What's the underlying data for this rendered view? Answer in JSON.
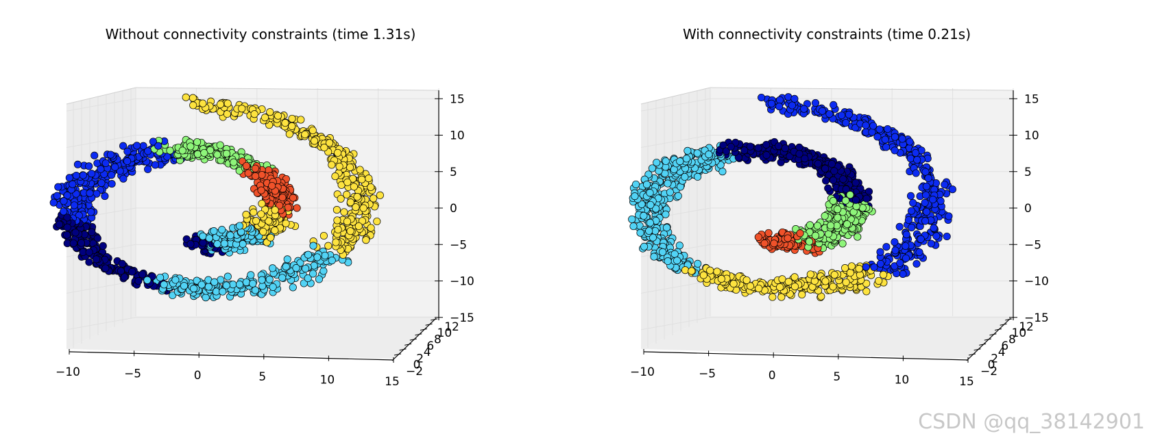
{
  "watermark": "CSDN @qq_38142901",
  "colors": {
    "cluster_0": "#00007f",
    "cluster_1": "#0c2bf2",
    "cluster_2": "#52d3f5",
    "cluster_3": "#8ef57a",
    "cluster_4": "#fde33f",
    "cluster_5": "#f0522a",
    "pane": "#f2f2f2",
    "grid": "#e0e0e0"
  },
  "chart_data": [
    {
      "type": "scatter",
      "projection": "3d",
      "title": "Without connectivity constraints (time 1.31s)",
      "x_ticks": [
        "−10",
        "−5",
        "0",
        "5",
        "10",
        "15"
      ],
      "y_ticks": [
        "−2",
        "0",
        "2",
        "4",
        "6",
        "8",
        "10",
        "12"
      ],
      "z_ticks": [
        "−15",
        "−10",
        "−5",
        "0",
        "5",
        "10",
        "15"
      ],
      "xlim": [
        -10,
        15
      ],
      "zlim": [
        -15,
        15
      ],
      "grid": true,
      "segments": [
        {
          "cluster": 4,
          "t_start": 0.97,
          "t_end": 1.0
        },
        {
          "cluster": 4,
          "t_start": 0.78,
          "t_end": 0.97
        },
        {
          "cluster": 2,
          "t_start": 0.64,
          "t_end": 0.78
        },
        {
          "cluster": 0,
          "t_start": 0.52,
          "t_end": 0.64
        },
        {
          "cluster": 1,
          "t_start": 0.36,
          "t_end": 0.52
        },
        {
          "cluster": 3,
          "t_start": 0.25,
          "t_end": 0.36
        },
        {
          "cluster": 5,
          "t_start": 0.16,
          "t_end": 0.25
        },
        {
          "cluster": 4,
          "t_start": 0.1,
          "t_end": 0.16
        },
        {
          "cluster": 2,
          "t_start": 0.03,
          "t_end": 0.1
        },
        {
          "cluster": 0,
          "t_start": 0.0,
          "t_end": 0.03
        }
      ]
    },
    {
      "type": "scatter",
      "projection": "3d",
      "title": "With connectivity constraints (time 0.21s)",
      "x_ticks": [
        "−10",
        "−5",
        "0",
        "5",
        "10",
        "15"
      ],
      "y_ticks": [
        "−2",
        "0",
        "2",
        "4",
        "6",
        "8",
        "10",
        "12"
      ],
      "z_ticks": [
        "−15",
        "−10",
        "−5",
        "0",
        "5",
        "10",
        "15"
      ],
      "xlim": [
        -10,
        15
      ],
      "zlim": [
        -15,
        15
      ],
      "grid": true,
      "segments": [
        {
          "cluster": 1,
          "t_start": 0.75,
          "t_end": 1.0
        },
        {
          "cluster": 4,
          "t_start": 0.6,
          "t_end": 0.75
        },
        {
          "cluster": 2,
          "t_start": 0.38,
          "t_end": 0.6
        },
        {
          "cluster": 0,
          "t_start": 0.18,
          "t_end": 0.38
        },
        {
          "cluster": 3,
          "t_start": 0.06,
          "t_end": 0.18
        },
        {
          "cluster": 5,
          "t_start": 0.0,
          "t_end": 0.06
        }
      ]
    }
  ]
}
